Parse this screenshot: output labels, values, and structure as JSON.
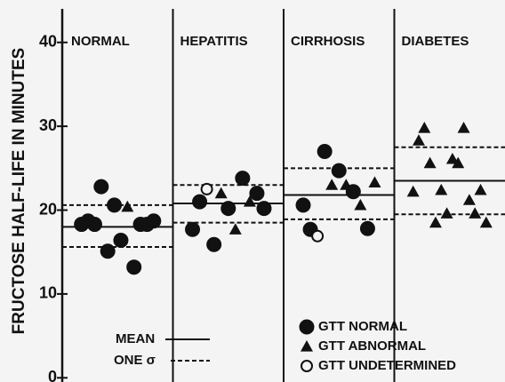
{
  "chart_data": {
    "type": "scatter",
    "ylabel": "FRUCTOSE HALF-LIFE IN MINUTES",
    "categories": [
      "NORMAL",
      "HEPATITIS",
      "CIRRHOSIS",
      "DIABETES"
    ],
    "ylim": [
      -0.5,
      44
    ],
    "yticks": [
      0,
      10,
      20,
      30,
      40
    ],
    "series": [
      {
        "name": "GTT NORMAL",
        "marker": "filled-circle",
        "color": "#111111",
        "x": [
          "NORMAL",
          "NORMAL",
          "NORMAL",
          "NORMAL",
          "NORMAL",
          "NORMAL",
          "NORMAL",
          "NORMAL",
          "NORMAL",
          "NORMAL",
          "NORMAL",
          "HEPATITIS",
          "HEPATITIS",
          "HEPATITIS",
          "HEPATITIS",
          "HEPATITIS",
          "HEPATITIS",
          "HEPATITIS",
          "CIRRHOSIS",
          "CIRRHOSIS",
          "CIRRHOSIS",
          "CIRRHOSIS",
          "CIRRHOSIS",
          "CIRRHOSIS"
        ],
        "values": [
          18.3,
          20.6,
          18.3,
          22.8,
          13.2,
          18.7,
          16.4,
          18.7,
          15.1,
          18.3,
          18.3,
          17.7,
          22.0,
          23.8,
          20.2,
          15.9,
          21.0,
          20.2,
          20.6,
          17.8,
          22.2,
          24.7,
          27.0,
          17.7
        ]
      },
      {
        "name": "GTT ABNORMAL",
        "marker": "triangle",
        "color": "#111111",
        "x": [
          "NORMAL",
          "HEPATITIS",
          "HEPATITIS",
          "HEPATITIS",
          "CIRRHOSIS",
          "CIRRHOSIS",
          "CIRRHOSIS",
          "CIRRHOSIS",
          "DIABETES",
          "DIABETES",
          "DIABETES",
          "DIABETES",
          "DIABETES",
          "DIABETES",
          "DIABETES",
          "DIABETES",
          "DIABETES",
          "DIABETES",
          "DIABETES",
          "DIABETES",
          "DIABETES",
          "DIABETES"
        ],
        "values": [
          20.4,
          21.0,
          17.7,
          22.0,
          23.3,
          20.6,
          23.0,
          23.0,
          22.2,
          25.6,
          19.6,
          29.8,
          22.4,
          28.3,
          18.5,
          26.1,
          21.2,
          18.5,
          29.8,
          22.4,
          25.6,
          19.6
        ]
      },
      {
        "name": "GTT UNDETERMINED",
        "marker": "open-circle",
        "color": "#111111",
        "x": [
          "HEPATITIS",
          "CIRRHOSIS"
        ],
        "values": [
          22.5,
          16.9
        ]
      }
    ],
    "mean": {
      "name": "MEAN",
      "values": [
        18.0,
        20.8,
        21.8,
        23.5
      ]
    },
    "sigma": {
      "name": "ONE σ",
      "upper": [
        20.6,
        23.0,
        25.0,
        27.5
      ],
      "lower": [
        15.6,
        18.5,
        18.9,
        19.5
      ]
    }
  }
}
